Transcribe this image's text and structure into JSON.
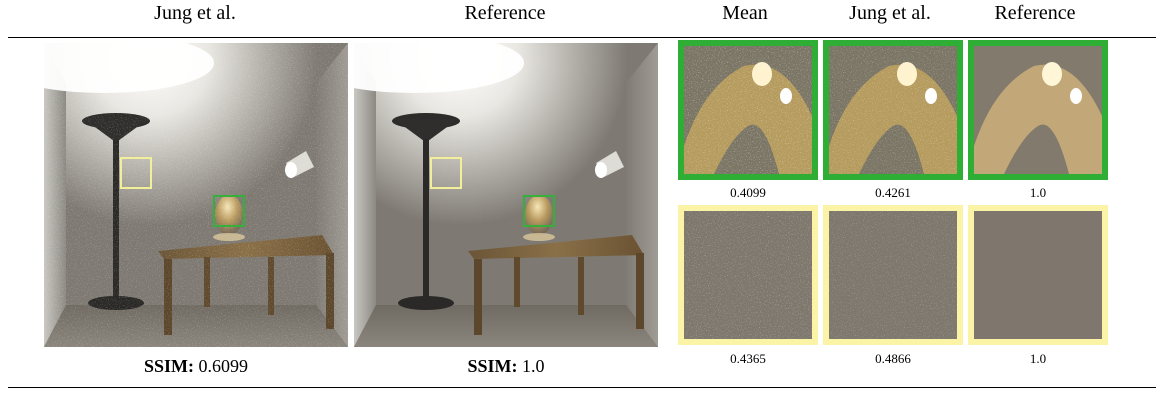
{
  "headers": {
    "col1": "Jung et al.",
    "col2": "Reference",
    "col3": "Mean",
    "col4": "Jung et al.",
    "col5": "Reference"
  },
  "captions": {
    "left_label": "SSIM:",
    "left_value": "0.6099",
    "mid_label": "SSIM:",
    "mid_value": "1.0"
  },
  "crop_scores": {
    "green": [
      "0.4099",
      "0.4261",
      "1.0"
    ],
    "yellow": [
      "0.4365",
      "0.4866",
      "1.0"
    ]
  },
  "colors": {
    "green_border": "#2eae34",
    "yellow_border": "#fbf4a6"
  }
}
